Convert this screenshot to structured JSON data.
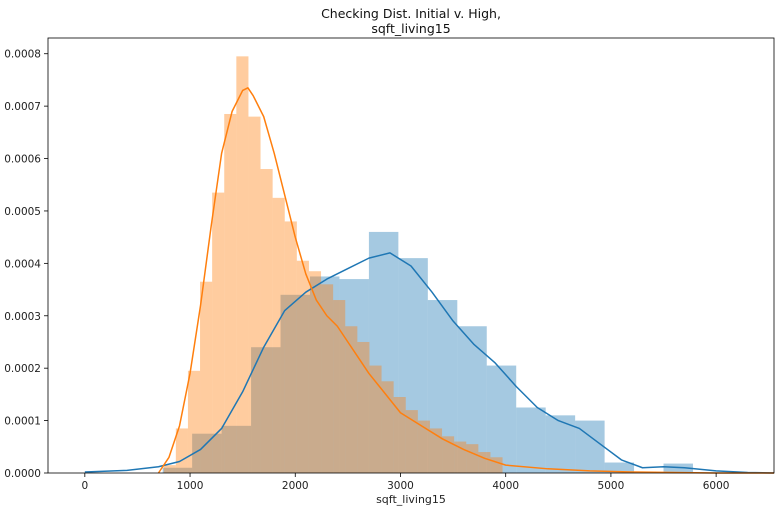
{
  "chart_data": {
    "type": "bar",
    "title_lines": [
      "Checking Dist. Initial v. High,",
      "sqft_living15"
    ],
    "xlabel": "sqft_living15",
    "ylabel": "",
    "xlim": [
      -350,
      6550
    ],
    "ylim": [
      0,
      0.00083
    ],
    "xticks": [
      0,
      1000,
      2000,
      3000,
      4000,
      5000,
      6000
    ],
    "xtick_labels": [
      "0",
      "1000",
      "2000",
      "3000",
      "4000",
      "5000",
      "6000"
    ],
    "yticks": [
      0,
      0.0001,
      0.0002,
      0.0003,
      0.0004,
      0.0005,
      0.0006,
      0.0007,
      0.0008
    ],
    "ytick_labels": [
      "0.0000",
      "0.0001",
      "0.0002",
      "0.0003",
      "0.0004",
      "0.0005",
      "0.0006",
      "0.0007",
      "0.0008"
    ],
    "grid": false,
    "legend": "none",
    "series": [
      {
        "color": "#1f77b4",
        "bar_alpha": 0.4,
        "bin_edges": [
          740,
          1020,
          1300,
          1580,
          1860,
          2140,
          2420,
          2700,
          2980,
          3260,
          3540,
          3820,
          4100,
          4380,
          4660,
          4940,
          5220,
          5500,
          5780
        ],
        "hist_values": [
          1e-05,
          7.5e-05,
          9e-05,
          0.00024,
          0.00034,
          0.000375,
          0.00037,
          0.00046,
          0.00041,
          0.00033,
          0.00028,
          0.000205,
          0.000125,
          0.00011,
          0.0001,
          2e-05,
          0.0,
          1.8e-05
        ],
        "kde_x": [
          0,
          400,
          700,
          900,
          1100,
          1300,
          1500,
          1700,
          1900,
          2100,
          2300,
          2500,
          2700,
          2900,
          3100,
          3300,
          3500,
          3700,
          3900,
          4100,
          4300,
          4500,
          4700,
          4900,
          5100,
          5300,
          5500,
          5700,
          6000,
          6300,
          6550
        ],
        "kde_y": [
          2e-06,
          5e-06,
          1.2e-05,
          2.2e-05,
          4.5e-05,
          8.5e-05,
          0.000155,
          0.00024,
          0.00031,
          0.000345,
          0.00037,
          0.00039,
          0.00041,
          0.00042,
          0.000395,
          0.000345,
          0.00029,
          0.000245,
          0.00021,
          0.000165,
          0.000125,
          0.0001,
          8.5e-05,
          5.5e-05,
          2.5e-05,
          1e-05,
          1.2e-05,
          1e-05,
          4e-06,
          1e-06,
          0.0
        ]
      },
      {
        "color": "#ff7f0e",
        "bar_alpha": 0.4,
        "bin_edges": [
          750,
          865,
          980,
          1095,
          1210,
          1325,
          1440,
          1555,
          1670,
          1785,
          1900,
          2015,
          2130,
          2245,
          2360,
          2475,
          2590,
          2705,
          2820,
          2935,
          3050,
          3165,
          3280,
          3395,
          3510,
          3625,
          3740,
          3855,
          3970
        ],
        "hist_values": [
          1.5e-05,
          8.5e-05,
          0.000195,
          0.000365,
          0.000535,
          0.000685,
          0.000795,
          0.00068,
          0.00058,
          0.000525,
          0.00048,
          0.000405,
          0.000385,
          0.00036,
          0.00033,
          0.00028,
          0.00025,
          0.000205,
          0.000175,
          0.000145,
          0.00012,
          0.0001,
          8.5e-05,
          7e-05,
          6e-05,
          5.5e-05,
          4e-05,
          3e-05
        ],
        "kde_x": [
          700,
          800,
          900,
          1000,
          1100,
          1200,
          1300,
          1400,
          1500,
          1550,
          1600,
          1700,
          1800,
          1900,
          2000,
          2100,
          2200,
          2300,
          2400,
          2500,
          2600,
          2700,
          2800,
          2900,
          3000,
          3200,
          3400,
          3600,
          3800,
          4000,
          4400,
          4800,
          5200,
          5600,
          6000,
          6550
        ],
        "kde_y": [
          0.0,
          3e-05,
          9e-05,
          0.00019,
          0.00032,
          0.00047,
          0.00061,
          0.00069,
          0.00073,
          0.000735,
          0.00072,
          0.00068,
          0.00061,
          0.00053,
          0.00045,
          0.00038,
          0.00033,
          0.0003,
          0.00028,
          0.00025,
          0.00022,
          0.00019,
          0.000165,
          0.00014,
          0.000115,
          9e-05,
          6.5e-05,
          4.5e-05,
          2.8e-05,
          1.5e-05,
          8e-06,
          4e-06,
          2e-06,
          1e-06,
          0.0,
          0.0
        ]
      }
    ]
  }
}
